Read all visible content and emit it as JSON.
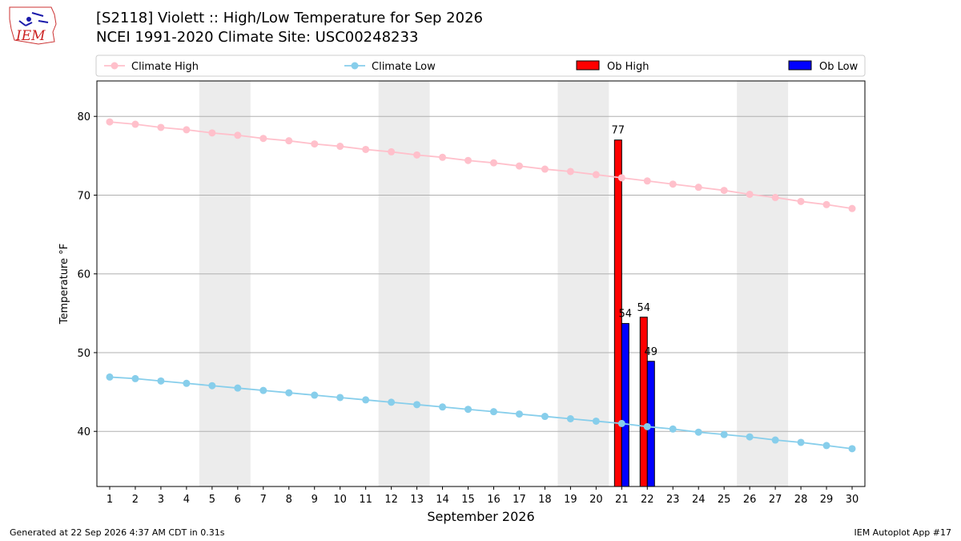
{
  "title": "[S2118] Violett :: High/Low Temperature for Sep 2026",
  "subtitle": "NCEI 1991-2020 Climate Site: USC00248233",
  "logo_text": "IEM",
  "footer_left": "Generated at 22 Sep 2026 4:37 AM CDT in 0.31s",
  "footer_right": "IEM Autoplot App #17",
  "colors": {
    "climate_high": "#ffc0cb",
    "climate_low": "#87ceeb",
    "ob_high": "#ff0000",
    "ob_low": "#0000ff",
    "weekend_shade": "#ececec",
    "grid": "#b0b0b0"
  },
  "chart_data": {
    "type": "bar",
    "xlabel": "September 2026",
    "ylabel": "Temperature °F",
    "xlim": [
      0.5,
      30.5
    ],
    "ylim": [
      33,
      84.5
    ],
    "yticks": [
      40,
      50,
      60,
      70,
      80
    ],
    "grid": "horizontal",
    "legend_placement": "top",
    "shaded_days": [
      [
        5,
        6
      ],
      [
        12,
        13
      ],
      [
        19,
        20
      ],
      [
        26,
        27
      ]
    ],
    "days": [
      1,
      2,
      3,
      4,
      5,
      6,
      7,
      8,
      9,
      10,
      11,
      12,
      13,
      14,
      15,
      16,
      17,
      18,
      19,
      20,
      21,
      22,
      23,
      24,
      25,
      26,
      27,
      28,
      29,
      30
    ],
    "series": [
      {
        "name": "Climate High",
        "kind": "line",
        "values": [
          79.3,
          79.0,
          78.6,
          78.3,
          77.9,
          77.6,
          77.2,
          76.9,
          76.5,
          76.2,
          75.8,
          75.5,
          75.1,
          74.8,
          74.4,
          74.1,
          73.7,
          73.3,
          73.0,
          72.6,
          72.2,
          71.8,
          71.4,
          71.0,
          70.6,
          70.1,
          69.7,
          69.2,
          68.8,
          68.3
        ]
      },
      {
        "name": "Climate Low",
        "kind": "line",
        "values": [
          46.9,
          46.7,
          46.4,
          46.1,
          45.8,
          45.5,
          45.2,
          44.9,
          44.6,
          44.3,
          44.0,
          43.7,
          43.4,
          43.1,
          42.8,
          42.5,
          42.2,
          41.9,
          41.6,
          41.3,
          41.0,
          40.6,
          40.3,
          39.9,
          39.6,
          39.3,
          38.9,
          38.6,
          38.2,
          37.8
        ]
      },
      {
        "name": "Ob High",
        "kind": "bar",
        "days": [
          21,
          22
        ],
        "values": [
          77,
          54.5
        ],
        "labels": [
          "77",
          "54"
        ]
      },
      {
        "name": "Ob Low",
        "kind": "bar",
        "days": [
          21,
          22
        ],
        "values": [
          53.7,
          48.9
        ],
        "labels": [
          "54",
          "49"
        ]
      }
    ]
  }
}
